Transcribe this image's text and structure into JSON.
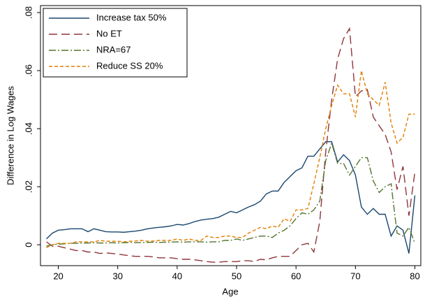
{
  "chart_data": {
    "type": "line",
    "xlabel": "Age",
    "ylabel": "Difference in Log Wages",
    "x": [
      18,
      19,
      20,
      21,
      22,
      23,
      24,
      25,
      26,
      27,
      28,
      29,
      30,
      31,
      32,
      33,
      34,
      35,
      36,
      37,
      38,
      39,
      40,
      41,
      42,
      43,
      44,
      45,
      46,
      47,
      48,
      49,
      50,
      51,
      52,
      53,
      54,
      55,
      56,
      57,
      58,
      59,
      60,
      61,
      62,
      63,
      64,
      65,
      66,
      67,
      68,
      69,
      70,
      71,
      72,
      73,
      74,
      75,
      76,
      77,
      78,
      79,
      80
    ],
    "xlim": [
      17,
      81
    ],
    "xticks": [
      20,
      30,
      40,
      50,
      60,
      70,
      80
    ],
    "ylim": [
      -0.0072,
      0.0824
    ],
    "yticks": [
      0,
      {
        "value": 0.02,
        "label": ".02"
      },
      {
        "value": 0.04,
        "label": ".04"
      },
      {
        "value": 0.06,
        "label": ".06"
      },
      {
        "value": 0.08,
        "label": ".08"
      }
    ],
    "legend": "top-left",
    "series": [
      {
        "name": "Increase tax 50%",
        "color": "#1a476f",
        "dash": "none",
        "values": [
          0.002,
          0.004,
          0.005,
          0.0052,
          0.0055,
          0.0055,
          0.0055,
          0.0045,
          0.0055,
          0.005,
          0.0045,
          0.0044,
          0.0044,
          0.0043,
          0.0045,
          0.0047,
          0.005,
          0.0055,
          0.0058,
          0.006,
          0.0062,
          0.0065,
          0.007,
          0.0068,
          0.0073,
          0.008,
          0.0085,
          0.0088,
          0.009,
          0.0095,
          0.0105,
          0.0115,
          0.011,
          0.012,
          0.013,
          0.0138,
          0.015,
          0.0175,
          0.0185,
          0.0185,
          0.0215,
          0.0235,
          0.0255,
          0.0265,
          0.0305,
          0.0305,
          0.033,
          0.0355,
          0.0355,
          0.0285,
          0.031,
          0.029,
          0.024,
          0.013,
          0.0105,
          0.0125,
          0.0105,
          0.0105,
          0.003,
          0.0065,
          0.005,
          -0.003,
          0.017
        ]
      },
      {
        "name": "No ET",
        "color": "#90353b",
        "dash": "12 6",
        "values": [
          0.001,
          -0.0005,
          -0.0005,
          -0.001,
          -0.0015,
          -0.002,
          -0.002,
          -0.0025,
          -0.0025,
          -0.003,
          -0.0028,
          -0.003,
          -0.0032,
          -0.0035,
          -0.0038,
          -0.004,
          -0.004,
          -0.004,
          -0.0042,
          -0.0045,
          -0.0045,
          -0.0045,
          -0.0048,
          -0.005,
          -0.005,
          -0.0052,
          -0.0055,
          -0.0058,
          -0.006,
          -0.006,
          -0.0058,
          -0.0058,
          -0.0058,
          -0.0055,
          -0.0055,
          -0.0058,
          -0.005,
          -0.0052,
          -0.0045,
          -0.004,
          -0.004,
          -0.004,
          -0.002,
          0,
          0.0005,
          -0.0025,
          0.008,
          0.032,
          0.05,
          0.064,
          0.071,
          0.0745,
          0.051,
          0.053,
          0.0535,
          0.044,
          0.041,
          0.038,
          0.032,
          0.019,
          0.027,
          0.01,
          0.025
        ]
      },
      {
        "name": "NRA=67",
        "color": "#55752f",
        "dash": "10 3 2 3",
        "values": [
          -0.0005,
          0,
          0.0002,
          0.0003,
          0.0005,
          0.0005,
          0.0006,
          0.0006,
          0.0007,
          0.0006,
          0.0006,
          0.0007,
          0.0006,
          0.0007,
          0.0008,
          0.0007,
          0.0008,
          0.0008,
          0.0009,
          0.0008,
          0.0009,
          0.0009,
          0.001,
          0.0009,
          0.001,
          0.001,
          0.001,
          0.0009,
          0.001,
          0.001,
          0.0015,
          0.0015,
          0.002,
          0.0015,
          0.002,
          0.0025,
          0.003,
          0.003,
          0.0025,
          0.004,
          0.005,
          0.0065,
          0.009,
          0.011,
          0.0105,
          0.012,
          0.015,
          0.029,
          0.035,
          0.028,
          0.028,
          0.024,
          0.027,
          0.03,
          0.03,
          0.022,
          0.018,
          0.02,
          0.021,
          0.004,
          0.003,
          0.006,
          0.0005
        ]
      },
      {
        "name": "Reduce SS 20%",
        "color": "#e37e00",
        "dash": "5 3",
        "values": [
          -0.001,
          0,
          0.0005,
          0.0005,
          0.0005,
          0.001,
          0.001,
          0.001,
          0.001,
          0.0015,
          0.0012,
          0.0012,
          0.0012,
          0.001,
          0.0012,
          0.0013,
          0.0015,
          0.0012,
          0.0013,
          0.0015,
          0.0015,
          0.0015,
          0.002,
          0.0015,
          0.002,
          0.0015,
          0.0015,
          0.003,
          0.0025,
          0.0025,
          0.003,
          0.003,
          0.0025,
          0.0025,
          0.004,
          0.005,
          0.006,
          0.0055,
          0.0065,
          0.006,
          0.009,
          0.008,
          0.012,
          0.012,
          0.0125,
          0.021,
          0.03,
          0.04,
          0.048,
          0.055,
          0.052,
          0.052,
          0.044,
          0.06,
          0.052,
          0.05,
          0.048,
          0.056,
          0.042,
          0.035,
          0.037,
          0.045,
          0.045
        ]
      }
    ]
  }
}
